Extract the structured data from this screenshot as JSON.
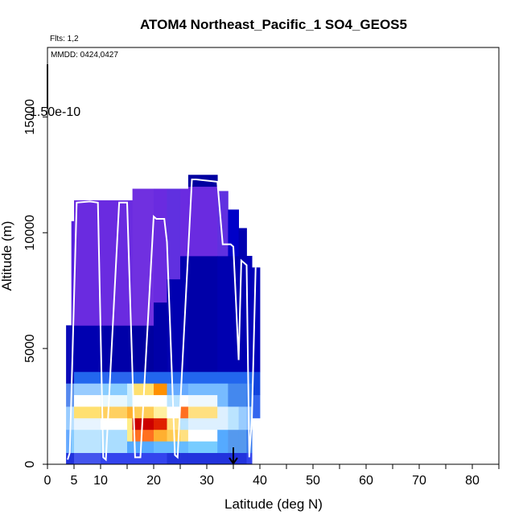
{
  "chart_data": {
    "type": "heatmap",
    "title": "ATOM4 Northeast_Pacific_1 SO4_GEOS5",
    "annotation_flights": "Flts: 1,2",
    "annotation_dates": "MMDD: 0424,0427",
    "colorscale_label": "1.50e-10",
    "xlabel": "Latitude (deg N)",
    "ylabel": "Altitude (m)",
    "xlim": [
      0,
      85
    ],
    "ylim": [
      0,
      18000
    ],
    "x_ticks": [
      "0",
      "5",
      "10",
      "20",
      "30",
      "40",
      "50",
      "60",
      "70",
      "80"
    ],
    "y_ticks": [
      "0",
      "5000",
      "10000",
      "15000"
    ],
    "marker_lat": 35,
    "columns": [
      {
        "lat": [
          3.5,
          4.5
        ],
        "top": 6000,
        "cells": [
          [
            0,
            500,
            "#2233dd"
          ],
          [
            500,
            1500,
            "#66aaff"
          ],
          [
            1500,
            2500,
            "#99ccff"
          ],
          [
            2500,
            3500,
            "#5588ee"
          ],
          [
            3500,
            6000,
            "#0a0ab8"
          ]
        ]
      },
      {
        "lat": [
          4.5,
          5.0
        ],
        "top": 10500,
        "cells": [
          [
            0,
            500,
            "#2233dd"
          ],
          [
            500,
            1500,
            "#88ccff"
          ],
          [
            1500,
            2500,
            "#bbe0ff"
          ],
          [
            2500,
            3500,
            "#6699ee"
          ],
          [
            3500,
            6000,
            "#0a0ab8"
          ],
          [
            6000,
            10500,
            "#5522dd"
          ]
        ]
      },
      {
        "lat": [
          5.0,
          10.0
        ],
        "top": 11400,
        "cells": [
          [
            0,
            500,
            "#4455ee"
          ],
          [
            500,
            1500,
            "#bbe4ff"
          ],
          [
            1500,
            2000,
            "#e8f4ff"
          ],
          [
            2000,
            2500,
            "#ffe070"
          ],
          [
            2500,
            3000,
            "#ffffff"
          ],
          [
            3000,
            3500,
            "#99ccff"
          ],
          [
            3500,
            4000,
            "#2266ee"
          ],
          [
            4000,
            6000,
            "#0000b0"
          ],
          [
            6000,
            11400,
            "#6a2be0"
          ]
        ]
      },
      {
        "lat": [
          10.0,
          15.0
        ],
        "top": 11400,
        "cells": [
          [
            0,
            500,
            "#3344ee"
          ],
          [
            500,
            1500,
            "#aaddff"
          ],
          [
            1500,
            2000,
            "#ffffff"
          ],
          [
            2000,
            2500,
            "#ffd060"
          ],
          [
            2500,
            3000,
            "#e8f8ff"
          ],
          [
            3000,
            3500,
            "#88ccff"
          ],
          [
            3500,
            4000,
            "#2a66ee"
          ],
          [
            4000,
            6000,
            "#0000a8"
          ],
          [
            6000,
            11400,
            "#6a2be0"
          ]
        ]
      },
      {
        "lat": [
          15.0,
          16.0
        ],
        "top": 11400,
        "cells": [
          [
            0,
            500,
            "#3344ee"
          ],
          [
            500,
            1000,
            "#55aaff"
          ],
          [
            1000,
            2000,
            "#ffee88"
          ],
          [
            2000,
            2500,
            "#ffb030"
          ],
          [
            2500,
            3500,
            "#c8ecff"
          ],
          [
            3500,
            4000,
            "#2a66ee"
          ],
          [
            4000,
            6000,
            "#0000a8"
          ],
          [
            6000,
            11400,
            "#6a2be0"
          ]
        ]
      },
      {
        "lat": [
          16.0,
          20.0
        ],
        "top": 11900,
        "cells": [
          [
            0,
            500,
            "#3344ee"
          ],
          [
            500,
            1000,
            "#55aaff"
          ],
          [
            1000,
            1500,
            "#ff7020"
          ],
          [
            1500,
            2000,
            "#cc0000"
          ],
          [
            2000,
            2500,
            "#ffcc55"
          ],
          [
            2500,
            3000,
            "#ffffff"
          ],
          [
            3000,
            3500,
            "#ffe070"
          ],
          [
            3500,
            4000,
            "#2266ee"
          ],
          [
            4000,
            6000,
            "#0000a0"
          ],
          [
            6000,
            11900,
            "#7030e0"
          ]
        ]
      },
      {
        "lat": [
          20.0,
          22.5
        ],
        "top": 11900,
        "cells": [
          [
            0,
            500,
            "#3344ee"
          ],
          [
            500,
            1000,
            "#66bbff"
          ],
          [
            1000,
            1500,
            "#ffb030"
          ],
          [
            1500,
            2000,
            "#e02000"
          ],
          [
            2000,
            2500,
            "#fff0a0"
          ],
          [
            2500,
            3000,
            "#ffffff"
          ],
          [
            3000,
            3500,
            "#ff9000"
          ],
          [
            3500,
            4000,
            "#2266ee"
          ],
          [
            4000,
            7000,
            "#0000a8"
          ],
          [
            7000,
            11900,
            "#6a2be0"
          ]
        ]
      },
      {
        "lat": [
          22.5,
          25.0
        ],
        "top": 11900,
        "cells": [
          [
            0,
            500,
            "#2233dd"
          ],
          [
            500,
            1000,
            "#66bbff"
          ],
          [
            1000,
            1500,
            "#ffcc55"
          ],
          [
            1500,
            2000,
            "#ffe080"
          ],
          [
            2000,
            2500,
            "#ffffff"
          ],
          [
            2500,
            3000,
            "#bbe4ff"
          ],
          [
            3000,
            3500,
            "#66aaff"
          ],
          [
            3500,
            4000,
            "#2266ee"
          ],
          [
            4000,
            8000,
            "#0000b0"
          ],
          [
            8000,
            11900,
            "#6030e0"
          ]
        ]
      },
      {
        "lat": [
          25.0,
          26.5
        ],
        "top": 11900,
        "cells": [
          [
            0,
            500,
            "#2233dd"
          ],
          [
            500,
            1000,
            "#66bbff"
          ],
          [
            1000,
            1500,
            "#ffe080"
          ],
          [
            1500,
            2000,
            "#bbe4ff"
          ],
          [
            2000,
            2500,
            "#ff7020"
          ],
          [
            2500,
            3000,
            "#ffffff"
          ],
          [
            3000,
            3500,
            "#66aaff"
          ],
          [
            3500,
            4000,
            "#2266ee"
          ],
          [
            4000,
            9000,
            "#0000b0"
          ],
          [
            9000,
            11900,
            "#6a2be0"
          ]
        ]
      },
      {
        "lat": [
          26.5,
          32.0
        ],
        "top": 12500,
        "cells": [
          [
            0,
            500,
            "#2233dd"
          ],
          [
            500,
            1000,
            "#77ccff"
          ],
          [
            1000,
            1500,
            "#ffffff"
          ],
          [
            1500,
            2000,
            "#ddf0ff"
          ],
          [
            2000,
            2500,
            "#ffe080"
          ],
          [
            2500,
            3000,
            "#eef8ff"
          ],
          [
            3000,
            3500,
            "#77bbff"
          ],
          [
            3500,
            4000,
            "#2266ee"
          ],
          [
            4000,
            9000,
            "#0000a8"
          ],
          [
            9000,
            12000,
            "#6a2be0"
          ],
          [
            12000,
            12500,
            "#0000a0"
          ]
        ]
      },
      {
        "lat": [
          32.0,
          34.0
        ],
        "top": 11800,
        "cells": [
          [
            0,
            500,
            "#2233dd"
          ],
          [
            500,
            1500,
            "#55aaff"
          ],
          [
            1500,
            2500,
            "#ddf0ff"
          ],
          [
            2500,
            3500,
            "#77bbff"
          ],
          [
            3500,
            4000,
            "#2266ee"
          ],
          [
            4000,
            9000,
            "#0000b0"
          ],
          [
            9000,
            11800,
            "#6030e0"
          ]
        ]
      },
      {
        "lat": [
          34.0,
          36.0
        ],
        "top": 11000,
        "cells": [
          [
            0,
            500,
            "#2233dd"
          ],
          [
            500,
            1500,
            "#5599ee"
          ],
          [
            1500,
            2500,
            "#bbe4ff"
          ],
          [
            2500,
            3500,
            "#4488ee"
          ],
          [
            3500,
            4000,
            "#2266ee"
          ],
          [
            4000,
            9000,
            "#0000b0"
          ],
          [
            9000,
            11000,
            "#0000c8"
          ]
        ]
      },
      {
        "lat": [
          36.0,
          37.5
        ],
        "top": 10200,
        "cells": [
          [
            0,
            500,
            "#2233dd"
          ],
          [
            500,
            1500,
            "#5599ee"
          ],
          [
            1500,
            2500,
            "#99ccff"
          ],
          [
            2500,
            3500,
            "#4488ee"
          ],
          [
            3500,
            4000,
            "#2266ee"
          ],
          [
            4000,
            10200,
            "#0000b0"
          ]
        ]
      },
      {
        "lat": [
          37.5,
          38.5
        ],
        "top": 9000,
        "cells": [
          [
            0,
            500,
            "#3344ee"
          ],
          [
            500,
            1500,
            "#3377ee"
          ],
          [
            1500,
            2500,
            "#88bbff"
          ],
          [
            2500,
            3500,
            "#3377ee"
          ],
          [
            3500,
            4000,
            "#2266ee"
          ],
          [
            4000,
            9000,
            "#0000b8"
          ]
        ]
      },
      {
        "lat": [
          38.5,
          40.0
        ],
        "top": 8500,
        "cells": [
          [
            2000,
            3000,
            "#3366ee"
          ],
          [
            3000,
            4000,
            "#1144dd"
          ],
          [
            4000,
            8500,
            "#0000b8"
          ]
        ]
      }
    ],
    "flight_track": [
      [
        3.8,
        200
      ],
      [
        4.2,
        500
      ],
      [
        5.5,
        11300
      ],
      [
        8,
        11350
      ],
      [
        9.5,
        11300
      ],
      [
        10.5,
        300
      ],
      [
        11,
        200
      ],
      [
        13.5,
        11300
      ],
      [
        15,
        11300
      ],
      [
        16.5,
        300
      ],
      [
        17.5,
        300
      ],
      [
        20,
        10700
      ],
      [
        20.5,
        10600
      ],
      [
        22,
        10600
      ],
      [
        22.5,
        9600
      ],
      [
        24,
        400
      ],
      [
        24.5,
        300
      ],
      [
        27.2,
        12300
      ],
      [
        28,
        12300
      ],
      [
        32,
        12200
      ],
      [
        33,
        9500
      ],
      [
        34.5,
        9500
      ],
      [
        35,
        9400
      ],
      [
        35.5,
        7000
      ],
      [
        36,
        4500
      ],
      [
        36.5,
        8800
      ],
      [
        37.5,
        8600
      ],
      [
        38,
        300
      ],
      [
        38.5,
        2000
      ],
      [
        39.2,
        8500
      ]
    ]
  }
}
